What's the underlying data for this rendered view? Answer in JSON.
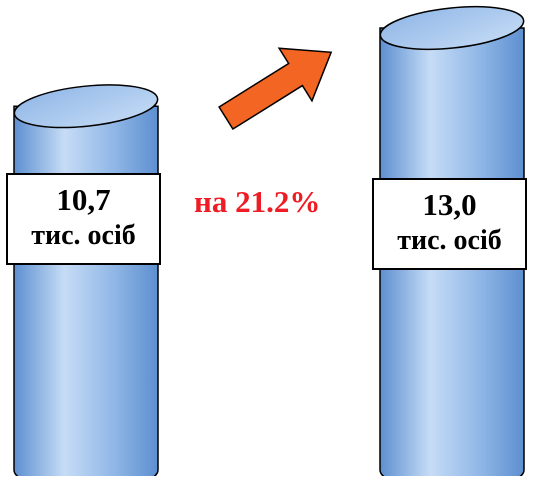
{
  "chart_data": {
    "type": "bar",
    "categories": [
      "",
      ""
    ],
    "values": [
      10.7,
      13.0
    ],
    "value_labels": [
      "10,7",
      "13,0"
    ],
    "unit_label": "тис. осіб",
    "growth_label": "на 21.2%",
    "bar_shape": "cylinder",
    "colors": {
      "bar_fill_light": "#c6dcf6",
      "bar_fill_mid": "#8fb6e6",
      "bar_fill_dark": "#5d8fd0",
      "bar_outline": "#000000",
      "arrow_fill": "#f26522",
      "growth_text": "#ee1c25"
    },
    "arrow_direction": "up-right"
  }
}
